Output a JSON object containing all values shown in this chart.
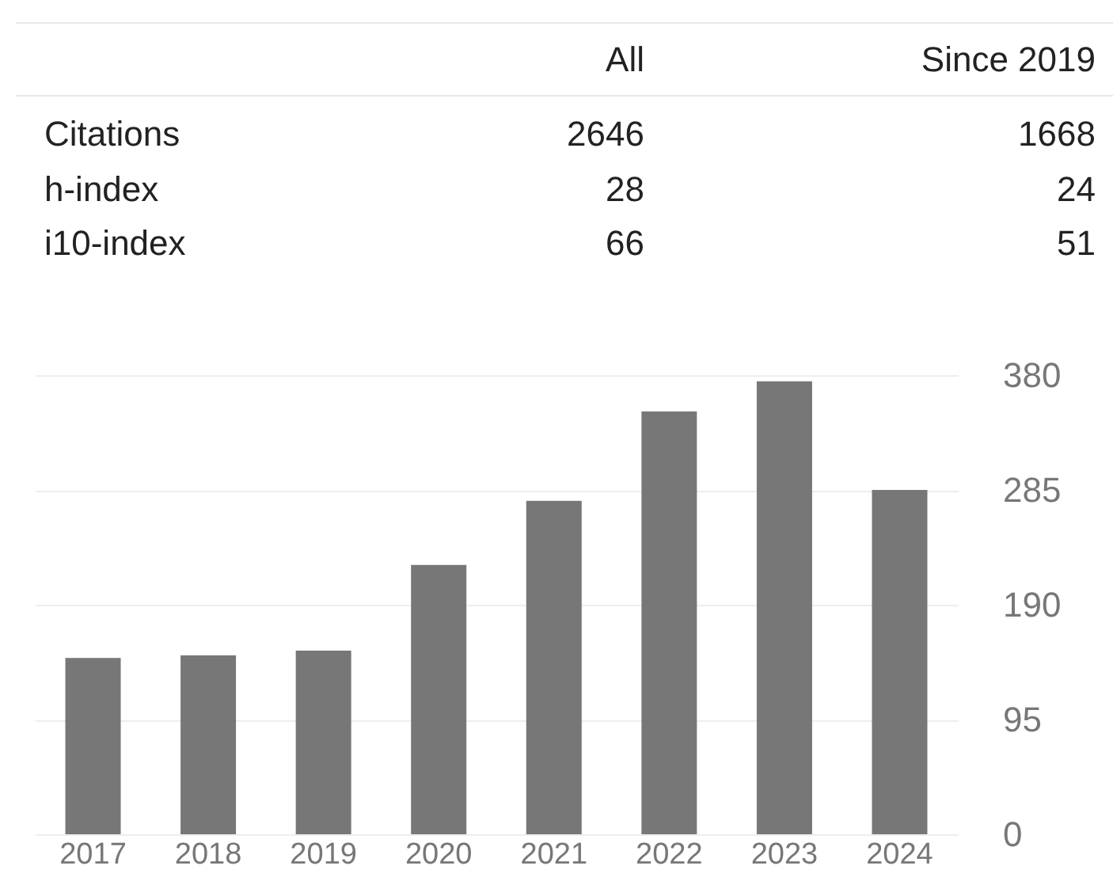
{
  "chart_data": [
    {
      "type": "other",
      "annotations": [
        "All",
        "Since 2019",
        "Citations",
        "2646",
        "1668",
        "h-index",
        "28",
        "24",
        "i10-index",
        "66",
        "51"
      ]
    },
    {
      "type": "bar",
      "categories": [
        "2017",
        "2018",
        "2019",
        "2020",
        "2021",
        "2022",
        "2023",
        "2024"
      ],
      "values": [
        146,
        148,
        152,
        223,
        276,
        350,
        375,
        285
      ],
      "color": "#777777",
      "ylim": [
        0,
        380
      ],
      "yticks": [
        0,
        95,
        190,
        285,
        380
      ],
      "grid": "y"
    }
  ]
}
